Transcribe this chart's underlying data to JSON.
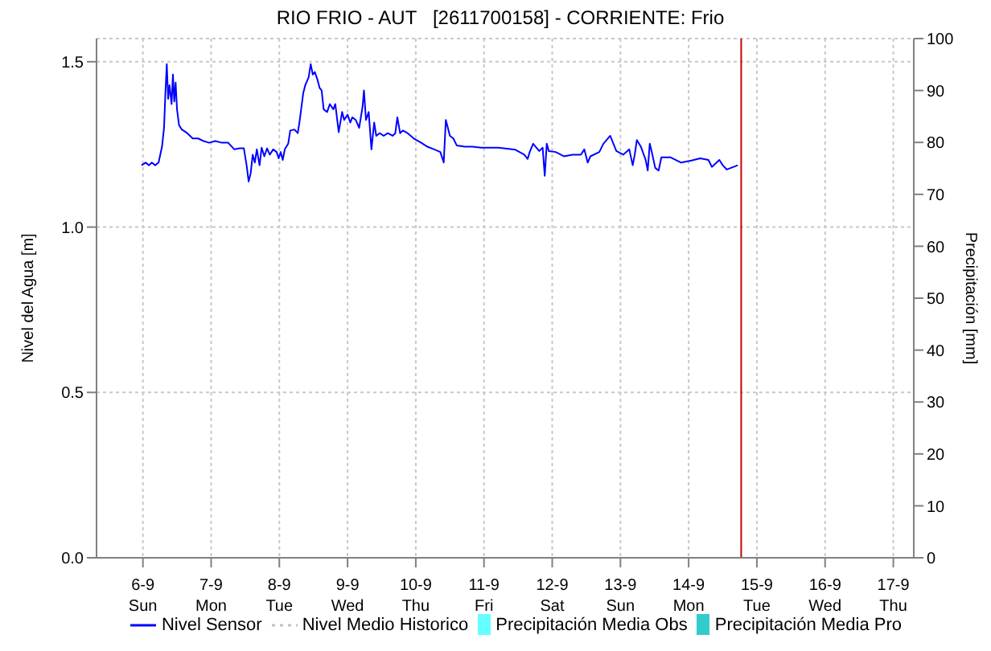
{
  "chart_data": {
    "type": "line",
    "title": "RIO FRIO - AUT   [2611700158] - CORRIENTE: Frio",
    "ylabel": "Nivel del Agua [m]",
    "y2label": "Precipitación [mm]",
    "xlim": [
      "--09-05T07:41",
      "--09-17T07:12"
    ],
    "xticks": [
      {
        "value": "--09-06",
        "label": "6-9\nSun"
      },
      {
        "value": "--09-07",
        "label": "7-9\nMon"
      },
      {
        "value": "--09-08",
        "label": "8-9\nTue"
      },
      {
        "value": "--09-09",
        "label": "9-9\nWed"
      },
      {
        "value": "--09-10",
        "label": "10-9\nThu"
      },
      {
        "value": "--09-11",
        "label": "11-9\nFri"
      },
      {
        "value": "--09-12",
        "label": "12-9\nSat"
      },
      {
        "value": "--09-13",
        "label": "13-9\nSun"
      },
      {
        "value": "--09-14",
        "label": "14-9\nMon"
      },
      {
        "value": "--09-15",
        "label": "15-9\nTue"
      },
      {
        "value": "--09-16",
        "label": "16-9\nWed"
      },
      {
        "value": "--09-17",
        "label": "17-9\nThu"
      }
    ],
    "ylim": [
      0,
      1.57
    ],
    "yticks": [
      {
        "value": 0,
        "label": "0.0"
      },
      0.5,
      {
        "value": 1,
        "label": "1.0"
      },
      1.5
    ],
    "y2lim": [
      0,
      100
    ],
    "y2ticks": [
      0,
      10,
      20,
      30,
      40,
      50,
      60,
      70,
      80,
      90,
      100
    ],
    "grid": true,
    "legend": "bottom",
    "ref_lines": [
      {
        "axis": "x",
        "value": "--09-14T18:29",
        "color": "#cc0000"
      }
    ],
    "series": [
      {
        "name": "Nivel Sensor",
        "color": "#0000ff",
        "line_style": "solid",
        "x": [
          "--09-05T23:31",
          "--09-06T00:58",
          "--09-06T02:10",
          "--09-06T03:07",
          "--09-06T04:19",
          "--09-06T05:31",
          "--09-06T06:43",
          "--09-06T07:26",
          "--09-06T07:55",
          "--09-06T08:24",
          "--09-06T08:53",
          "--09-06T09:22",
          "--09-06T10:05",
          "--09-06T10:34",
          "--09-06T11:02",
          "--09-06T11:31",
          "--09-06T12:00",
          "--09-06T12:43",
          "--09-06T13:41",
          "--09-06T15:36",
          "--09-06T17:31",
          "--09-06T19:26",
          "--09-06T21:22",
          "--09-06T23:17",
          "--09-07T01:26",
          "--09-07T03:50",
          "--09-07T06:00",
          "--09-07T08:10",
          "--09-07T10:05",
          "--09-07T11:31",
          "--09-07T12:29",
          "--09-07T13:12",
          "--09-07T13:55",
          "--09-07T14:38",
          "--09-07T15:22",
          "--09-07T16:05",
          "--09-07T17:02",
          "--09-07T17:46",
          "--09-07T18:43",
          "--09-07T19:41",
          "--09-07T20:38",
          "--09-07T21:50",
          "--09-07T23:02",
          "--09-07T23:46",
          "--09-08T00:29",
          "--09-08T01:12",
          "--09-08T01:55",
          "--09-08T03:07",
          "--09-08T03:50",
          "--09-08T05:17",
          "--09-08T06:29",
          "--09-08T07:12",
          "--09-08T08:24",
          "--09-08T09:07",
          "--09-08T10:19",
          "--09-08T11:02",
          "--09-08T11:46",
          "--09-08T12:29",
          "--09-08T13:26",
          "--09-08T14:10",
          "--09-08T14:53",
          "--09-08T15:36",
          "--09-08T16:48",
          "--09-08T17:46",
          "--09-08T18:58",
          "--09-08T19:41",
          "--09-08T20:53",
          "--09-08T22:05",
          "--09-08T22:48",
          "--09-09T00:00",
          "--09-09T00:58",
          "--09-09T01:41",
          "--09-09T02:53",
          "--09-09T04:05",
          "--09-09T05:17",
          "--09-09T05:46",
          "--09-09T06:29",
          "--09-09T07:26",
          "--09-09T08:24",
          "--09-09T09:22",
          "--09-09T10:05",
          "--09-09T11:17",
          "--09-09T12:43",
          "--09-09T14:10",
          "--09-09T15:50",
          "--09-09T16:48",
          "--09-09T17:31",
          "--09-09T18:29",
          "--09-09T19:26",
          "--09-09T21:07",
          "--09-09T23:17",
          "--09-10T01:55",
          "--09-10T04:05",
          "--09-10T06:29",
          "--09-10T08:38",
          "--09-10T09:50",
          "--09-10T10:34",
          "--09-10T11:17",
          "--09-10T12:00",
          "--09-10T13:12",
          "--09-10T14:24",
          "--09-10T17:17",
          "--09-10T19:55",
          "--09-10T23:02",
          "--09-11T02:10",
          "--09-11T05:02",
          "--09-11T08:10",
          "--09-11T11:02",
          "--09-11T14:10",
          "--09-11T15:22",
          "--09-11T16:05",
          "--09-11T17:17",
          "--09-11T19:26",
          "--09-11T20:38",
          "--09-11T21:22",
          "--09-11T22:05",
          "--09-11T22:48",
          "--09-12T01:12",
          "--09-12T04:05",
          "--09-12T07:12",
          "--09-12T10:05",
          "--09-12T11:17",
          "--09-12T12:29",
          "--09-12T13:26",
          "--09-12T16:34",
          "--09-12T18:00",
          "--09-12T20:24",
          "--09-12T22:34",
          "--09-13T00:58",
          "--09-13T03:07",
          "--09-13T04:19",
          "--09-13T05:02",
          "--09-13T05:46",
          "--09-13T07:12",
          "--09-13T08:53",
          "--09-13T09:36",
          "--09-13T10:19",
          "--09-13T11:02",
          "--09-13T12:14",
          "--09-13T13:26",
          "--09-13T14:24",
          "--09-13T17:31",
          "--09-13T21:22",
          "--09-14T00:58",
          "--09-14T04:05",
          "--09-14T06:58",
          "--09-14T08:10",
          "--09-14T10:48",
          "--09-14T12:00",
          "--09-14T13:26",
          "--09-14T14:53",
          "--09-14T17:17"
        ],
        "values": [
          1.187,
          1.195,
          1.187,
          1.195,
          1.187,
          1.195,
          1.243,
          1.3,
          1.405,
          1.493,
          1.388,
          1.429,
          1.372,
          1.461,
          1.38,
          1.437,
          1.356,
          1.308,
          1.295,
          1.284,
          1.268,
          1.268,
          1.26,
          1.255,
          1.26,
          1.255,
          1.255,
          1.235,
          1.238,
          1.238,
          1.187,
          1.138,
          1.163,
          1.219,
          1.195,
          1.235,
          1.187,
          1.24,
          1.214,
          1.238,
          1.219,
          1.235,
          1.227,
          1.208,
          1.227,
          1.203,
          1.235,
          1.252,
          1.292,
          1.295,
          1.284,
          1.324,
          1.405,
          1.429,
          1.453,
          1.493,
          1.461,
          1.469,
          1.445,
          1.421,
          1.413,
          1.356,
          1.348,
          1.372,
          1.356,
          1.372,
          1.287,
          1.348,
          1.324,
          1.34,
          1.316,
          1.332,
          1.324,
          1.3,
          1.364,
          1.413,
          1.324,
          1.348,
          1.235,
          1.316,
          1.276,
          1.284,
          1.276,
          1.284,
          1.276,
          1.284,
          1.332,
          1.284,
          1.292,
          1.284,
          1.268,
          1.255,
          1.243,
          1.235,
          1.227,
          1.195,
          1.324,
          1.3,
          1.276,
          1.268,
          1.247,
          1.243,
          1.243,
          1.24,
          1.24,
          1.24,
          1.237,
          1.234,
          1.219,
          1.206,
          1.227,
          1.252,
          1.23,
          1.24,
          1.155,
          1.252,
          1.23,
          1.227,
          1.214,
          1.219,
          1.219,
          1.235,
          1.195,
          1.214,
          1.227,
          1.252,
          1.276,
          1.23,
          1.219,
          1.235,
          1.187,
          1.219,
          1.263,
          1.243,
          1.203,
          1.171,
          1.252,
          1.227,
          1.179,
          1.171,
          1.211,
          1.211,
          1.195,
          1.201,
          1.208,
          1.203,
          1.182,
          1.203,
          1.187,
          1.174,
          1.179,
          1.187
        ]
      },
      {
        "name": "Nivel Medio Historico",
        "color": "#c0c0c0",
        "line_style": "dotted"
      },
      {
        "name": "Precipitación Media Obs",
        "type": "bar",
        "color": "#66ffff"
      },
      {
        "name": "Precipitación Media Pro",
        "type": "bar",
        "color": "#33cccc"
      }
    ]
  }
}
